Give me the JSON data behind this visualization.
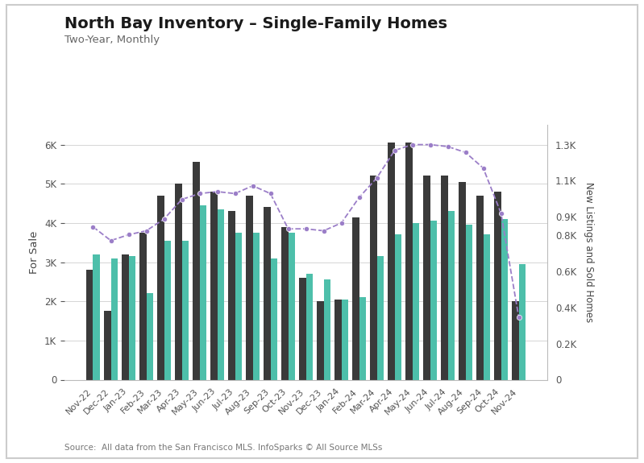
{
  "title": "North Bay Inventory – Single-Family Homes",
  "subtitle": "Two-Year, Monthly",
  "source": "Source:  All data from the San Francisco MLS. InfoSparks © All Source MLSs",
  "ylabel_left": "For Sale",
  "ylabel_right": "New Listings and Sold Homes",
  "categories": [
    "Nov-22",
    "Dec-22",
    "Jan-23",
    "Feb-23",
    "Mar-23",
    "Apr-23",
    "May-23",
    "Jun-23",
    "Jul-23",
    "Aug-23",
    "Sep-23",
    "Oct-23",
    "Nov-23",
    "Dec-23",
    "Jan-24",
    "Feb-24",
    "Mar-24",
    "Apr-24",
    "May-24",
    "Jun-24",
    "Jul-24",
    "Aug-24",
    "Sep-24",
    "Oct-24",
    "Nov-24"
  ],
  "new_listings": [
    2800,
    1750,
    3200,
    3750,
    4700,
    5000,
    5550,
    4800,
    4300,
    4700,
    4400,
    3900,
    2600,
    2000,
    2050,
    4150,
    5200,
    6050,
    6050,
    5200,
    5200,
    5050,
    4700,
    4800,
    2000
  ],
  "sold": [
    3200,
    3100,
    3150,
    2200,
    3550,
    3550,
    4450,
    4350,
    3750,
    3750,
    3100,
    3750,
    2700,
    2550,
    2050,
    2100,
    3150,
    3700,
    4000,
    4050,
    4300,
    3950,
    3700,
    4100,
    2950
  ],
  "for_sale": [
    3900,
    3550,
    3700,
    3800,
    4100,
    4600,
    4750,
    4800,
    4750,
    4950,
    4750,
    3850,
    3850,
    3800,
    4000,
    4650,
    5150,
    5850,
    6000,
    6000,
    5950,
    5800,
    5400,
    4250,
    1600
  ],
  "bar_dark_color": "#3a3a3a",
  "bar_teal_color": "#4dbfaa",
  "line_color": "#9b7ec8",
  "background_color": "#ffffff",
  "frame_color": "#e0e0e0"
}
